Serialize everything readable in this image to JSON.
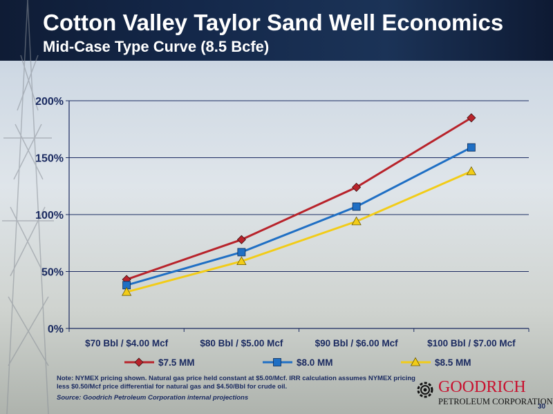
{
  "slide": {
    "title": "Cotton Valley Taylor Sand Well Economics",
    "subtitle": "Mid-Case Type Curve (8.5 Bcfe)",
    "note": "Note: NYMEX pricing shown.  Natural gas price held constant at $5.00/Mcf.  IRR calculation assumes NYMEX pricing less $0.50/Mcf price differential for natural gas and $4.50/Bbl for crude oil.",
    "source": "Source: Goodrich Petroleum Corporation internal projections",
    "page_number": "30",
    "logo": {
      "name": "GOODRICH",
      "sub": "PETROLEUM CORPORATION",
      "icon": "gear-logo-icon"
    }
  },
  "chart_data": {
    "type": "line",
    "title": "",
    "xlabel": "",
    "ylabel": "",
    "categories": [
      "$70 Bbl / $4.00 Mcf",
      "$80 Bbl / $5.00 Mcf",
      "$90 Bbl / $6.00 Mcf",
      "$100 Bbl / $7.00 Mcf"
    ],
    "ylim": [
      0,
      200
    ],
    "yticks": [
      0,
      50,
      100,
      150,
      200
    ],
    "ytick_labels": [
      "0%",
      "50%",
      "100%",
      "150%",
      "200%"
    ],
    "grid": true,
    "legend_position": "bottom",
    "series": [
      {
        "name": "$7.5 MM",
        "values": [
          43,
          78,
          124,
          185
        ],
        "color": "#b8232b",
        "marker": "diamond"
      },
      {
        "name": "$8.0 MM",
        "values": [
          38,
          67,
          107,
          159
        ],
        "color": "#1f6fc4",
        "marker": "square"
      },
      {
        "name": "$8.5 MM",
        "values": [
          32,
          59,
          94,
          138
        ],
        "color": "#f2cc18",
        "marker": "triangle"
      }
    ]
  }
}
